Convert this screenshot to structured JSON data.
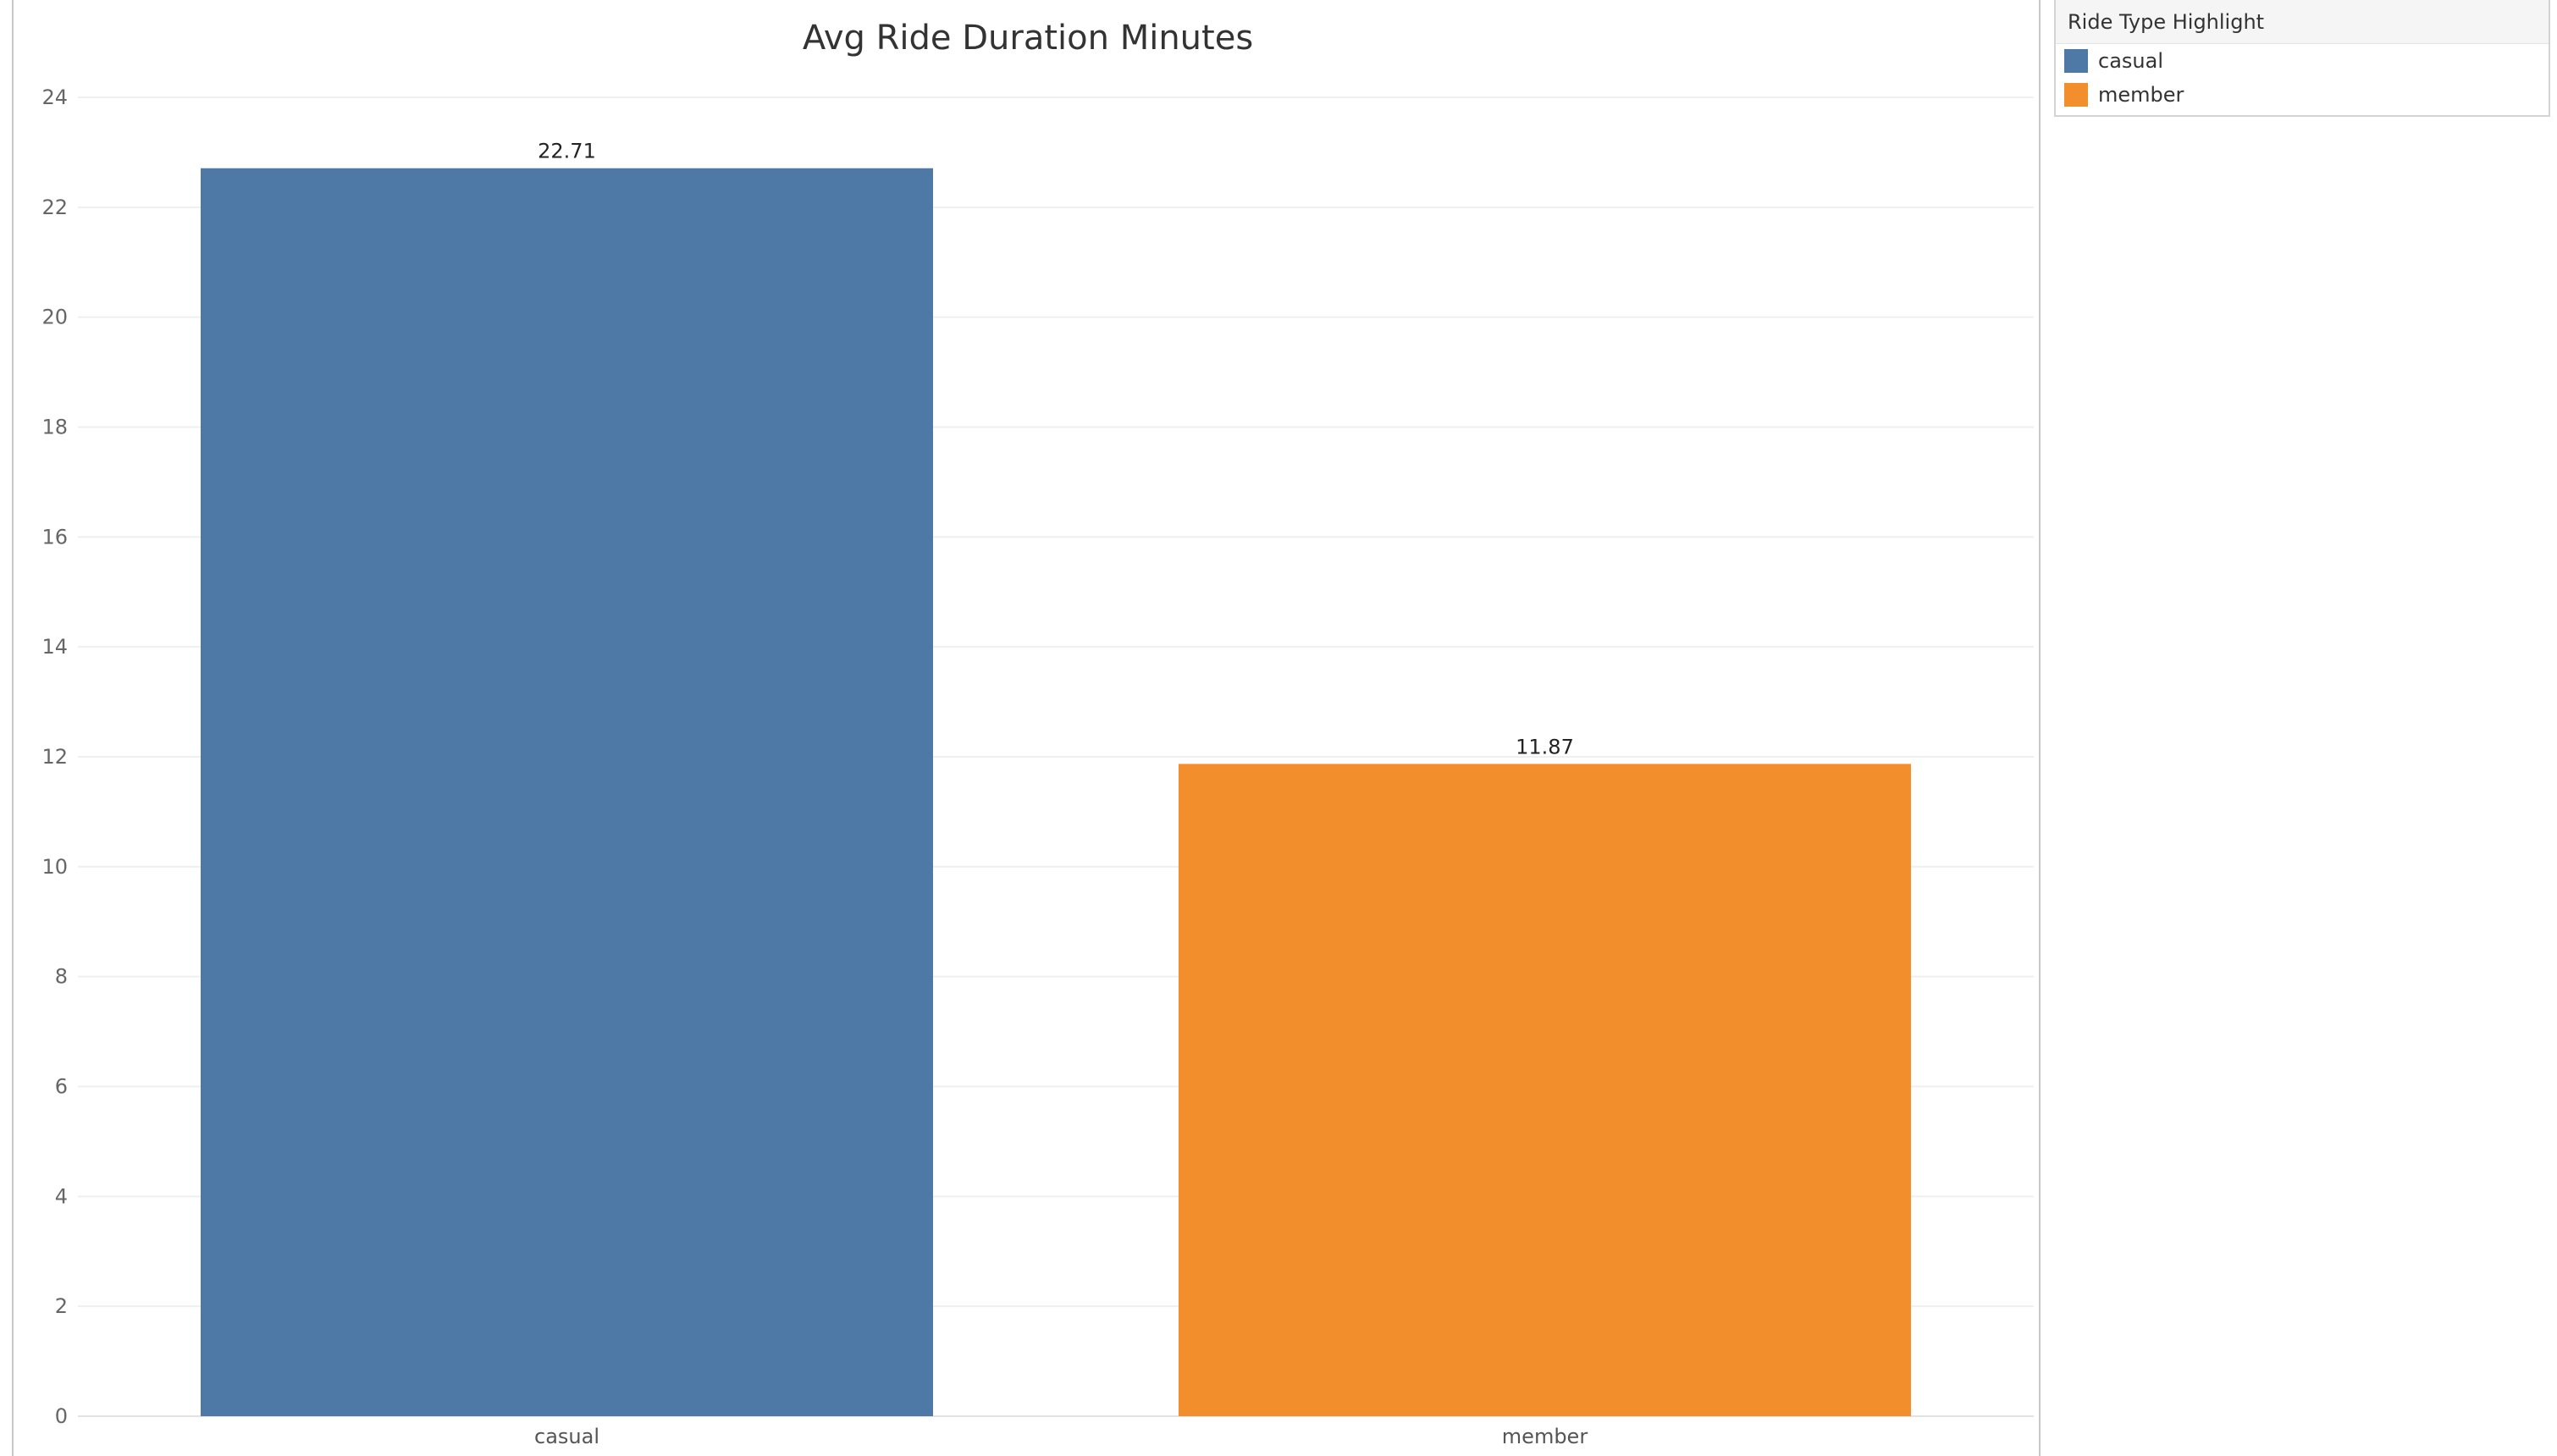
{
  "chart_data": {
    "type": "bar",
    "title": "Avg Ride Duration Minutes",
    "xlabel": "",
    "ylabel": "",
    "categories": [
      "casual",
      "member"
    ],
    "values": [
      22.71,
      11.87
    ],
    "value_labels": [
      "22.71",
      "11.87"
    ],
    "colors": [
      "#4e79a7",
      "#f28e2c"
    ],
    "ylim": [
      0,
      24
    ],
    "yticks": [
      0,
      2,
      4,
      6,
      8,
      10,
      12,
      14,
      16,
      18,
      20,
      22,
      24
    ],
    "grid": true,
    "legend_position": "right"
  },
  "legend": {
    "title": "Ride Type Highlight",
    "items": [
      {
        "label": "casual",
        "color": "#4e79a7"
      },
      {
        "label": "member",
        "color": "#f28e2c"
      }
    ]
  }
}
